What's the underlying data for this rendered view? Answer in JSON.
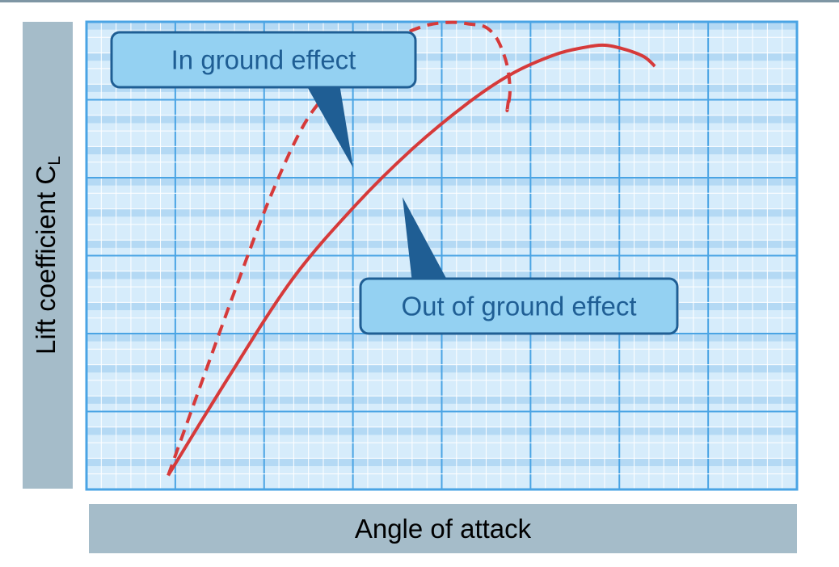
{
  "chart_data": {
    "type": "line",
    "title": "",
    "xlabel": "Angle of attack",
    "ylabel_main": "Lift coefficient C",
    "ylabel_sub": "L",
    "xlim": [
      0,
      100
    ],
    "ylim": [
      0,
      100
    ],
    "grid": true,
    "series": [
      {
        "name": "In ground effect",
        "style": "dashed",
        "color": "#d63a3a",
        "x": [
          11.5,
          16,
          21,
          26,
          31,
          36,
          40,
          44,
          48,
          51.5,
          54,
          56,
          57.5,
          58.5,
          59.3,
          59.6,
          59.2,
          59.5
        ],
        "y": [
          3,
          22,
          43,
          63,
          79,
          88,
          94,
          97,
          99.3,
          99.9,
          99.5,
          99,
          97,
          94,
          90,
          85,
          81,
          84.5
        ]
      },
      {
        "name": "Out of ground effect",
        "style": "solid",
        "color": "#d63a3a",
        "x": [
          11.5,
          20,
          29,
          38,
          46,
          54,
          60,
          66,
          70,
          73,
          76,
          78.5,
          80
        ],
        "y": [
          3,
          24,
          45,
          61,
          73,
          83,
          89,
          93,
          94.5,
          95,
          94,
          92.5,
          90.5
        ]
      }
    ]
  },
  "annotations": {
    "in_ground": "In ground effect",
    "out_ground": "Out of ground effect"
  },
  "colors": {
    "plot_bg": "#d6ecfb",
    "band": "#b4d9f4",
    "grid_major": "#4aa4e4",
    "grid_minor": "#ffffff",
    "label_box": "#a5bcc9",
    "callout_fill": "#94d1f2",
    "callout_stroke": "#1f5e94",
    "line": "#d63a3a"
  }
}
